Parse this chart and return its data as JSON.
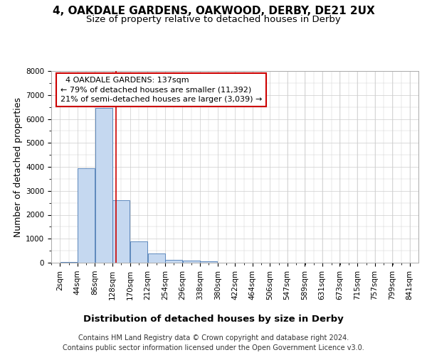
{
  "title": "4, OAKDALE GARDENS, OAKWOOD, DERBY, DE21 2UX",
  "subtitle": "Size of property relative to detached houses in Derby",
  "xlabel": "Distribution of detached houses by size in Derby",
  "ylabel": "Number of detached properties",
  "property_size": 137,
  "property_label": "4 OAKDALE GARDENS: 137sqm",
  "pct_smaller": 79,
  "n_smaller": "11,392",
  "pct_larger": 21,
  "n_larger": "3,039",
  "footnote1": "Contains HM Land Registry data © Crown copyright and database right 2024.",
  "footnote2": "Contains public sector information licensed under the Open Government Licence v3.0.",
  "bin_labels": [
    "2sqm",
    "44sqm",
    "86sqm",
    "128sqm",
    "170sqm",
    "212sqm",
    "254sqm",
    "296sqm",
    "338sqm",
    "380sqm",
    "422sqm",
    "464sqm",
    "506sqm",
    "547sqm",
    "589sqm",
    "631sqm",
    "673sqm",
    "715sqm",
    "757sqm",
    "799sqm",
    "841sqm"
  ],
  "bin_edges": [
    2,
    44,
    86,
    128,
    170,
    212,
    254,
    296,
    338,
    380,
    422,
    464,
    506,
    547,
    589,
    631,
    673,
    715,
    757,
    799,
    841
  ],
  "bar_values": [
    30,
    3950,
    6450,
    2600,
    900,
    380,
    130,
    100,
    60,
    0,
    0,
    0,
    0,
    0,
    0,
    0,
    0,
    0,
    0,
    0
  ],
  "bar_color": "#c5d8f0",
  "bar_edge_color": "#4a7ab5",
  "grid_color": "#cccccc",
  "line_color": "#cc0000",
  "annotation_box_color": "#cc0000",
  "ylim": [
    0,
    8000
  ],
  "yticks": [
    0,
    1000,
    2000,
    3000,
    4000,
    5000,
    6000,
    7000,
    8000
  ],
  "fig_bg": "#ffffff",
  "title_fontsize": 11,
  "subtitle_fontsize": 9.5,
  "axis_label_fontsize": 9,
  "tick_fontsize": 7.5,
  "annotation_fontsize": 8,
  "footnote_fontsize": 7
}
